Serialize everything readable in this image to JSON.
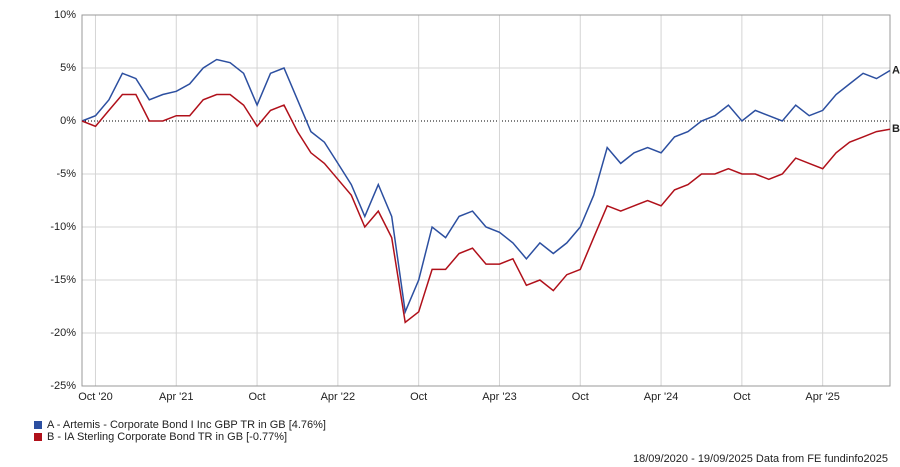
{
  "chart_data": {
    "type": "line",
    "x": [
      "2020-09",
      "2020-10",
      "2020-11",
      "2020-12",
      "2021-01",
      "2021-02",
      "2021-03",
      "2021-04",
      "2021-05",
      "2021-06",
      "2021-07",
      "2021-08",
      "2021-09",
      "2021-10",
      "2021-11",
      "2021-12",
      "2022-01",
      "2022-02",
      "2022-03",
      "2022-04",
      "2022-05",
      "2022-06",
      "2022-07",
      "2022-08",
      "2022-09",
      "2022-10",
      "2022-11",
      "2022-12",
      "2023-01",
      "2023-02",
      "2023-03",
      "2023-04",
      "2023-05",
      "2023-06",
      "2023-07",
      "2023-08",
      "2023-09",
      "2023-10",
      "2023-11",
      "2023-12",
      "2024-01",
      "2024-02",
      "2024-03",
      "2024-04",
      "2024-05",
      "2024-06",
      "2024-07",
      "2024-08",
      "2024-09",
      "2024-10",
      "2024-11",
      "2024-12",
      "2025-01",
      "2025-02",
      "2025-03",
      "2025-04",
      "2025-05",
      "2025-06",
      "2025-07",
      "2025-08",
      "2025-09"
    ],
    "series": [
      {
        "name": "A - Artemis - Corporate Bond I Inc GBP TR in GB [4.76%]",
        "label": "A",
        "color": "#2c4fa0",
        "values": [
          0,
          0.5,
          2,
          4.5,
          4,
          2,
          2.5,
          2.8,
          3.5,
          5,
          5.8,
          5.5,
          4.5,
          1.5,
          4.5,
          5,
          2,
          -1,
          -2,
          -4,
          -6,
          -9,
          -6,
          -9,
          -18,
          -15,
          -10,
          -11,
          -9,
          -8.5,
          -10,
          -10.5,
          -11.5,
          -13,
          -11.5,
          -12.5,
          -11.5,
          -10,
          -7,
          -2.5,
          -4,
          -3,
          -2.5,
          -3,
          -1.5,
          -1,
          0,
          0.5,
          1.5,
          0,
          1,
          0.5,
          0,
          1.5,
          0.5,
          1,
          2.5,
          3.5,
          4.5,
          4,
          4.76
        ]
      },
      {
        "name": "B - IA Sterling Corporate Bond TR in GB [-0.77%]",
        "label": "B",
        "color": "#b0101a",
        "values": [
          0,
          -0.5,
          1,
          2.5,
          2.5,
          0,
          0,
          0.5,
          0.5,
          2,
          2.5,
          2.5,
          1.5,
          -0.5,
          1,
          1.5,
          -1,
          -3,
          -4,
          -5.5,
          -7,
          -10,
          -8.5,
          -11,
          -19,
          -18,
          -14,
          -14,
          -12.5,
          -12,
          -13.5,
          -13.5,
          -13,
          -15.5,
          -15,
          -16,
          -14.5,
          -14,
          -11,
          -8,
          -8.5,
          -8,
          -7.5,
          -8,
          -6.5,
          -6,
          -5,
          -5,
          -4.5,
          -5,
          -5,
          -5.5,
          -5,
          -3.5,
          -4,
          -4.5,
          -3,
          -2,
          -1.5,
          -1,
          -0.77
        ]
      }
    ],
    "xlim": [
      "2020-09",
      "2025-09"
    ],
    "xticks": [
      {
        "value": "2020-10",
        "label": "Oct '20"
      },
      {
        "value": "2021-04",
        "label": "Apr '21"
      },
      {
        "value": "2021-10",
        "label": "Oct"
      },
      {
        "value": "2022-04",
        "label": "Apr '22"
      },
      {
        "value": "2022-10",
        "label": "Oct"
      },
      {
        "value": "2023-04",
        "label": "Apr '23"
      },
      {
        "value": "2023-10",
        "label": "Oct"
      },
      {
        "value": "2024-04",
        "label": "Apr '24"
      },
      {
        "value": "2024-10",
        "label": "Oct"
      },
      {
        "value": "2025-04",
        "label": "Apr '25"
      }
    ],
    "ylim": [
      -25,
      10
    ],
    "yticks": [
      {
        "value": -25,
        "label": "-25%"
      },
      {
        "value": -20,
        "label": "-20%"
      },
      {
        "value": -15,
        "label": "-15%"
      },
      {
        "value": -10,
        "label": "-10%"
      },
      {
        "value": -5,
        "label": "-5%"
      },
      {
        "value": 0,
        "label": "0%"
      },
      {
        "value": 5,
        "label": "5%"
      },
      {
        "value": 10,
        "label": "10%"
      }
    ],
    "grid": true,
    "footer": "18/09/2020 - 19/09/2025 Data from FE fundinfo2025"
  }
}
